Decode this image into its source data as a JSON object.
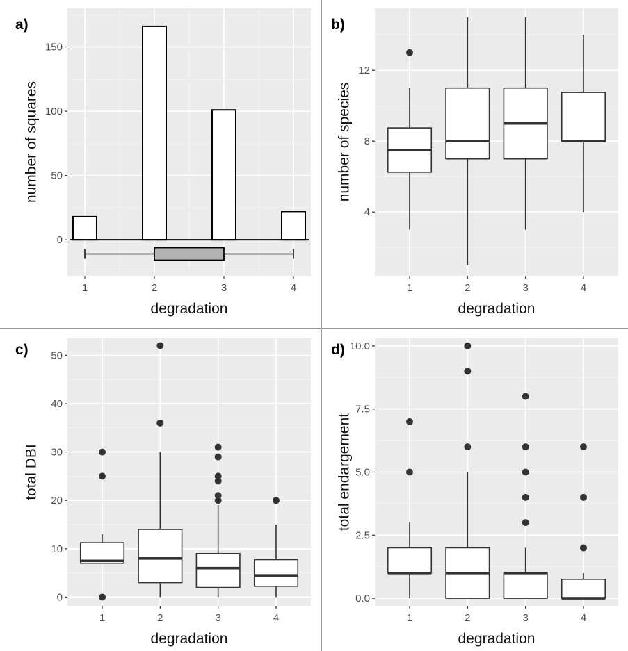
{
  "chart_data": [
    {
      "panel_label": "a)",
      "type": "bar",
      "xlabel": "degradation",
      "ylabel": "number of squares",
      "xlim": [
        0.75,
        4.25
      ],
      "ylim": [
        -28,
        180
      ],
      "yticks": [
        0,
        50,
        100,
        150
      ],
      "xticks": [
        1,
        2,
        3,
        4
      ],
      "grid": true,
      "categories": [
        "1",
        "2",
        "3",
        "4"
      ],
      "values": [
        18,
        166,
        101,
        22
      ],
      "summary_box": {
        "min": 1,
        "q1": 2,
        "median": 2,
        "q3": 3,
        "max": 4,
        "y": -11
      }
    },
    {
      "panel_label": "b)",
      "type": "box",
      "xlabel": "degradation",
      "ylabel": "number of species",
      "ylim": [
        0.4,
        15.5
      ],
      "yticks": [
        4,
        8,
        12
      ],
      "xticks": [
        1,
        2,
        3,
        4
      ],
      "grid": true,
      "boxes": [
        {
          "x": 1,
          "min": 3,
          "q1": 6.25,
          "median": 7.5,
          "q3": 8.75,
          "max": 11,
          "outliers": [
            13
          ]
        },
        {
          "x": 2,
          "min": 1,
          "q1": 7,
          "median": 8,
          "q3": 11,
          "max": 15,
          "outliers": []
        },
        {
          "x": 3,
          "min": 3,
          "q1": 7,
          "median": 9,
          "q3": 11,
          "max": 15,
          "outliers": []
        },
        {
          "x": 4,
          "min": 4,
          "q1": 8,
          "median": 8,
          "q3": 10.75,
          "max": 14,
          "outliers": []
        }
      ]
    },
    {
      "panel_label": "c)",
      "type": "box",
      "xlabel": "degradation",
      "ylabel": "total DBI",
      "ylim": [
        -1.8,
        53.5
      ],
      "yticks": [
        0,
        10,
        20,
        30,
        40,
        50
      ],
      "xticks": [
        1,
        2,
        3,
        4
      ],
      "grid": true,
      "boxes": [
        {
          "x": 1,
          "min": 7,
          "q1": 7,
          "median": 7.5,
          "q3": 11.25,
          "max": 13,
          "outliers": [
            0,
            25,
            30
          ]
        },
        {
          "x": 2,
          "min": 0,
          "q1": 3,
          "median": 8,
          "q3": 14,
          "max": 30,
          "outliers": [
            36,
            52
          ]
        },
        {
          "x": 3,
          "min": 0,
          "q1": 2,
          "median": 6,
          "q3": 9,
          "max": 19,
          "outliers": [
            20,
            21,
            24,
            25,
            29,
            31
          ]
        },
        {
          "x": 4,
          "min": 0,
          "q1": 2.25,
          "median": 4.5,
          "q3": 7.75,
          "max": 15,
          "outliers": [
            20
          ]
        }
      ]
    },
    {
      "panel_label": "d)",
      "type": "box",
      "xlabel": "degradation",
      "ylabel": "total endargement",
      "ylim": [
        -0.3,
        10.3
      ],
      "yticks": [
        0,
        2.5,
        5,
        7.5,
        10
      ],
      "yticklabels": [
        "0.0",
        "2.5",
        "5.0",
        "7.5",
        "10.0"
      ],
      "xticks": [
        1,
        2,
        3,
        4
      ],
      "grid": true,
      "boxes": [
        {
          "x": 1,
          "min": 0,
          "q1": 1,
          "median": 1,
          "q3": 2,
          "max": 3,
          "outliers": [
            5,
            7
          ]
        },
        {
          "x": 2,
          "min": 0,
          "q1": 0,
          "median": 1,
          "q3": 2,
          "max": 5,
          "outliers": [
            6,
            9,
            10
          ]
        },
        {
          "x": 3,
          "min": 0,
          "q1": 0,
          "median": 1,
          "q3": 1,
          "max": 2,
          "outliers": [
            3,
            4,
            5,
            6,
            8
          ]
        },
        {
          "x": 4,
          "min": 0,
          "q1": 0,
          "median": 0,
          "q3": 0.75,
          "max": 1,
          "outliers": [
            2,
            4,
            6
          ]
        }
      ]
    }
  ]
}
